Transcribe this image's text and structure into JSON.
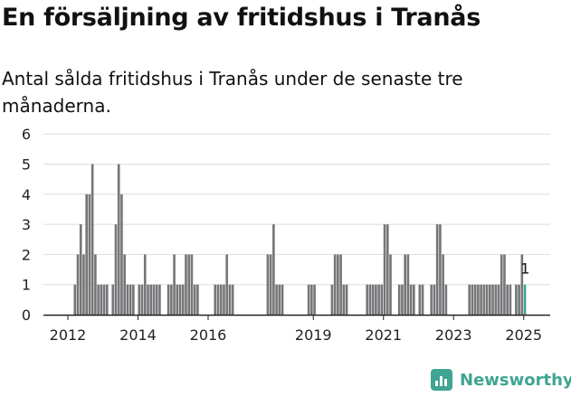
{
  "header": {
    "title": "En försäljning av fritidshus i Tranås",
    "subtitle": "Antal sålda fritidshus i Tranås under de senaste tre månaderna."
  },
  "brand": {
    "name": "Newsworthy",
    "color": "#3fa592"
  },
  "colors": {
    "bar": "#767679",
    "highlight": "#3fa592",
    "grid": "#dddddd",
    "axis": "#222222"
  },
  "chart_data": {
    "type": "bar",
    "title": "En försäljning av fritidshus i Tranås",
    "subtitle": "Antal sålda fritidshus i Tranås under de senaste tre månaderna.",
    "xlabel": "",
    "ylabel": "",
    "ylim": [
      0,
      6
    ],
    "yticks": [
      0,
      1,
      2,
      3,
      4,
      5,
      6
    ],
    "x_tick_labels": [
      "2012",
      "2014",
      "2016",
      "2019",
      "2021",
      "2023",
      "2025"
    ],
    "x_tick_positions": [
      "2012-01",
      "2014-01",
      "2016-01",
      "2019-01",
      "2021-01",
      "2023-01",
      "2025-01"
    ],
    "grid": true,
    "x": [
      "2012-03",
      "2012-04",
      "2012-05",
      "2012-06",
      "2012-07",
      "2012-08",
      "2012-09",
      "2012-10",
      "2012-11",
      "2012-12",
      "2013-01",
      "2013-02",
      "2013-03",
      "2013-04",
      "2013-05",
      "2013-06",
      "2013-07",
      "2013-08",
      "2013-09",
      "2013-10",
      "2013-11",
      "2013-12",
      "2014-01",
      "2014-02",
      "2014-03",
      "2014-04",
      "2014-05",
      "2014-06",
      "2014-07",
      "2014-08",
      "2014-09",
      "2014-10",
      "2014-11",
      "2014-12",
      "2015-01",
      "2015-02",
      "2015-03",
      "2015-04",
      "2015-05",
      "2015-06",
      "2015-07",
      "2015-08",
      "2015-09",
      "2015-10",
      "2015-11",
      "2015-12",
      "2016-01",
      "2016-02",
      "2016-03",
      "2016-04",
      "2016-05",
      "2016-06",
      "2016-07",
      "2016-08",
      "2016-09",
      "2016-10",
      "2016-11",
      "2016-12",
      "2017-01",
      "2017-02",
      "2017-03",
      "2017-04",
      "2017-05",
      "2017-06",
      "2017-07",
      "2017-08",
      "2017-09",
      "2017-10",
      "2017-11",
      "2017-12",
      "2018-01",
      "2018-02",
      "2018-03",
      "2018-04",
      "2018-05",
      "2018-06",
      "2018-07",
      "2018-08",
      "2018-09",
      "2018-10",
      "2018-11",
      "2018-12",
      "2019-01",
      "2019-02",
      "2019-03",
      "2019-04",
      "2019-05",
      "2019-06",
      "2019-07",
      "2019-08",
      "2019-09",
      "2019-10",
      "2019-11",
      "2019-12",
      "2020-01",
      "2020-02",
      "2020-03",
      "2020-04",
      "2020-05",
      "2020-06",
      "2020-07",
      "2020-08",
      "2020-09",
      "2020-10",
      "2020-11",
      "2020-12",
      "2021-01",
      "2021-02",
      "2021-03",
      "2021-04",
      "2021-05",
      "2021-06",
      "2021-07",
      "2021-08",
      "2021-09",
      "2021-10",
      "2021-11",
      "2021-12",
      "2022-01",
      "2022-02",
      "2022-03",
      "2022-04",
      "2022-05",
      "2022-06",
      "2022-07",
      "2022-08",
      "2022-09",
      "2022-10",
      "2022-11",
      "2022-12",
      "2023-01",
      "2023-02",
      "2023-03",
      "2023-04",
      "2023-05",
      "2023-06",
      "2023-07",
      "2023-08",
      "2023-09",
      "2023-10",
      "2023-11",
      "2023-12",
      "2024-01",
      "2024-02",
      "2024-03",
      "2024-04",
      "2024-05",
      "2024-06",
      "2024-07",
      "2024-08",
      "2024-09",
      "2024-10",
      "2024-11",
      "2024-12",
      "2025-01"
    ],
    "series": [
      {
        "values": [
          1,
          2,
          3,
          2,
          4,
          4,
          5,
          2,
          1,
          1,
          1,
          1,
          0,
          1,
          3,
          5,
          4,
          2,
          1,
          1,
          1,
          0,
          1,
          1,
          2,
          1,
          1,
          1,
          1,
          1,
          0,
          0,
          1,
          1,
          2,
          1,
          1,
          1,
          2,
          2,
          2,
          1,
          1,
          0,
          0,
          0,
          0,
          0,
          1,
          1,
          1,
          1,
          2,
          1,
          1,
          0,
          0,
          0,
          0,
          0,
          0,
          0,
          0,
          0,
          0,
          0,
          2,
          2,
          3,
          1,
          1,
          1,
          0,
          0,
          0,
          0,
          0,
          0,
          0,
          0,
          1,
          1,
          1,
          0,
          0,
          0,
          0,
          0,
          1,
          2,
          2,
          2,
          1,
          1,
          0,
          0,
          0,
          0,
          0,
          0,
          1,
          1,
          1,
          1,
          1,
          1,
          3,
          3,
          2,
          0,
          0,
          1,
          1,
          2,
          2,
          1,
          1,
          0,
          1,
          1,
          0,
          0,
          1,
          1,
          3,
          3,
          2,
          1,
          0,
          0,
          0,
          0,
          0,
          0,
          0,
          1,
          1,
          1,
          1,
          1,
          1,
          1,
          1,
          1,
          1,
          1,
          2,
          2,
          1,
          1,
          0,
          1,
          1,
          2,
          1
        ]
      }
    ],
    "highlight": {
      "x": "2025-01",
      "value": 1,
      "label": "1"
    }
  }
}
